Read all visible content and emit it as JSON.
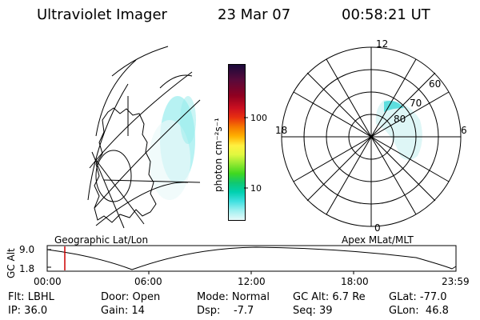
{
  "header": {
    "instrument": "Ultraviolet Imager",
    "date": "23 Mar 07",
    "time": "00:58:21 UT"
  },
  "colorbar": {
    "unit": "photon cm⁻²s⁻¹",
    "ticks": [
      "100",
      "10"
    ],
    "colors": [
      "#1a0a3a",
      "#5a0a3a",
      "#900020",
      "#cc1020",
      "#e83010",
      "#f57800",
      "#ffb000",
      "#fff040",
      "#e0f840",
      "#90e830",
      "#40d820",
      "#10c870",
      "#00d0b0",
      "#40e0e0",
      "#a0f0f0",
      "#e8fafa"
    ]
  },
  "geo_panel": {
    "label": "Geographic Lat/Lon"
  },
  "polar_panel": {
    "label": "Apex MLat/MLT",
    "mlt_labels": {
      "top": "12",
      "left": "18",
      "right": "6",
      "bottom": "0"
    },
    "lat_labels": [
      "60",
      "70",
      "80"
    ]
  },
  "timeline": {
    "ylabel": "GC Alt",
    "yticks": [
      "9.0",
      "1.8"
    ],
    "xticks": [
      "00:00",
      "06:00",
      "12:00",
      "18:00",
      "23:59"
    ],
    "marker_color": "#cc0000"
  },
  "info": {
    "col1": [
      "Flt: LBHL",
      "IP: 36.0"
    ],
    "col2": [
      "Door: Open",
      "Gain: 14"
    ],
    "col3": [
      "Mode: Normal",
      "Dsp:    -7.7"
    ],
    "col4": [
      "GC Alt: 6.7 Re",
      "Seq: 39"
    ],
    "col5": [
      "GLat: -77.0",
      "GLon:  46.8"
    ]
  }
}
